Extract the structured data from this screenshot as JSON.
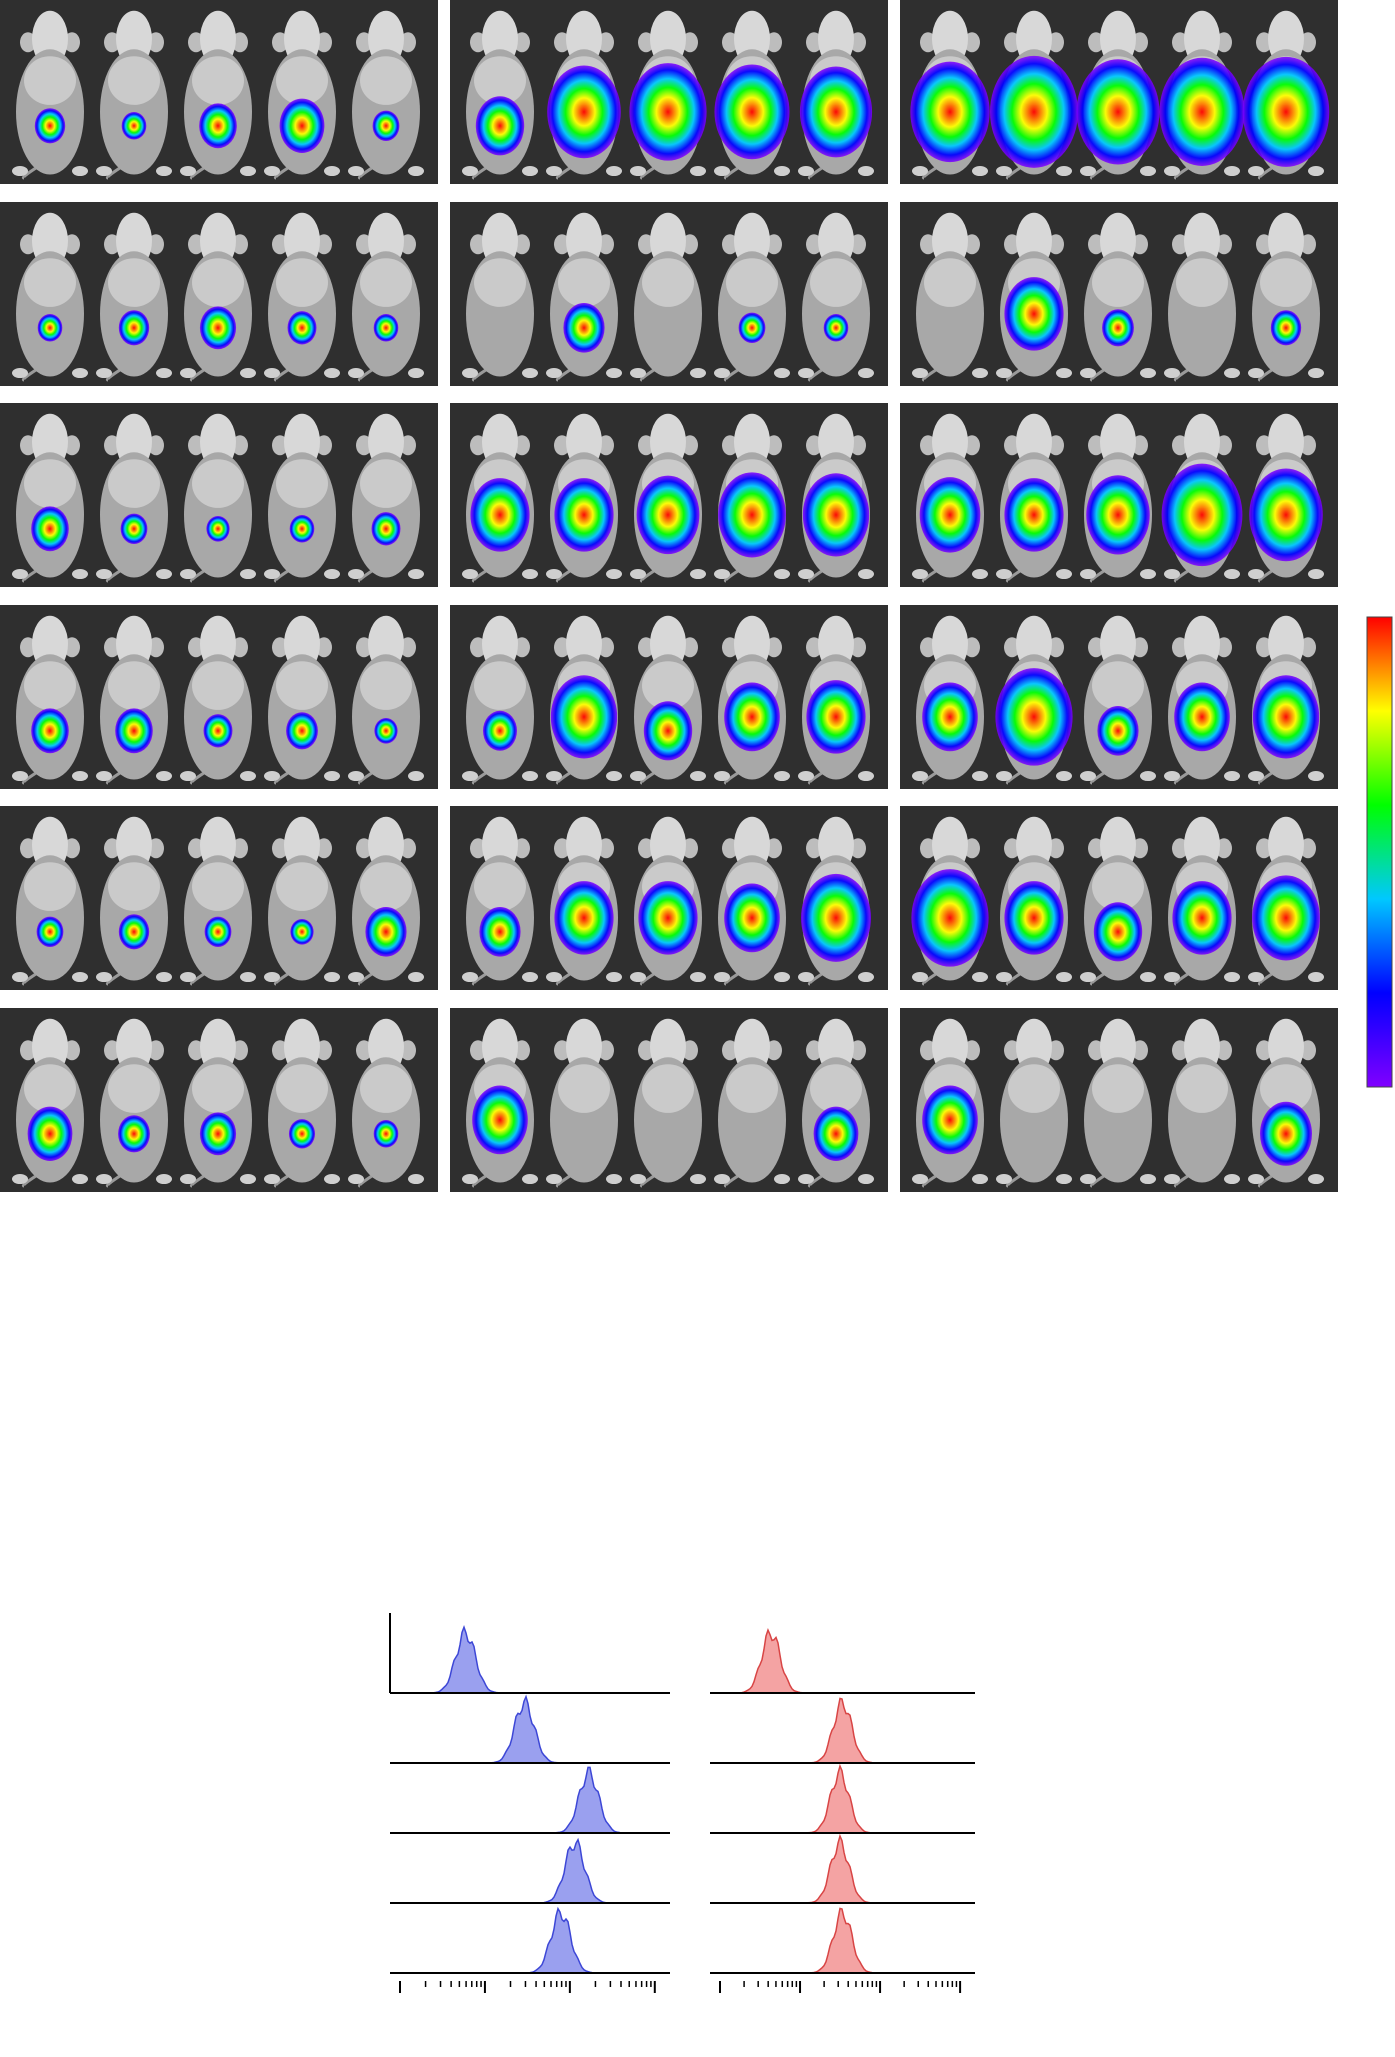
{
  "imaging": {
    "rows": 6,
    "columns": 3,
    "mice_per_panel": 5,
    "signal": [
      [
        [
          0.2,
          0.12,
          0.3,
          0.4,
          0.15
        ],
        [
          0.45,
          0.8,
          0.85,
          0.82,
          0.78
        ],
        [
          0.88,
          1.0,
          0.93,
          0.96,
          0.98
        ]
      ],
      [
        [
          0.12,
          0.2,
          0.28,
          0.18,
          0.12
        ],
        [
          0.0,
          0.35,
          0.0,
          0.15,
          0.12
        ],
        [
          0.0,
          0.6,
          0.22,
          0.0,
          0.2
        ]
      ],
      [
        [
          0.3,
          0.15,
          0.1,
          0.12,
          0.18
        ],
        [
          0.6,
          0.6,
          0.65,
          0.72,
          0.7
        ],
        [
          0.62,
          0.6,
          0.66,
          0.9,
          0.8
        ]
      ],
      [
        [
          0.3,
          0.3,
          0.18,
          0.22,
          0.1
        ],
        [
          0.25,
          0.7,
          0.45,
          0.55,
          0.6
        ],
        [
          0.55,
          0.85,
          0.35,
          0.55,
          0.7
        ]
      ],
      [
        [
          0.15,
          0.2,
          0.15,
          0.1,
          0.35
        ],
        [
          0.35,
          0.6,
          0.6,
          0.55,
          0.75
        ],
        [
          0.85,
          0.6,
          0.45,
          0.6,
          0.72
        ]
      ],
      [
        [
          0.4,
          0.22,
          0.28,
          0.14,
          0.12
        ],
        [
          0.55,
          0.0,
          0.0,
          0.0,
          0.4
        ],
        [
          0.55,
          0.0,
          0.0,
          0.0,
          0.5
        ]
      ]
    ]
  },
  "colorbar": {
    "stops": [
      "#8000ff",
      "#0000ff",
      "#00c8ff",
      "#00ff00",
      "#ffff00",
      "#ff0000"
    ]
  },
  "colors": {
    "blue_histogram_fill": "#9aa0ef",
    "blue_histogram_stroke": "#3d47d6",
    "red_histogram_fill": "#f4a3a3",
    "red_histogram_stroke": "#d84545"
  },
  "histograms": {
    "blue_peaks": [
      0.27,
      0.48,
      0.71,
      0.66,
      0.61
    ],
    "red_peaks": [
      0.23,
      0.5,
      0.49,
      0.49,
      0.5
    ]
  }
}
